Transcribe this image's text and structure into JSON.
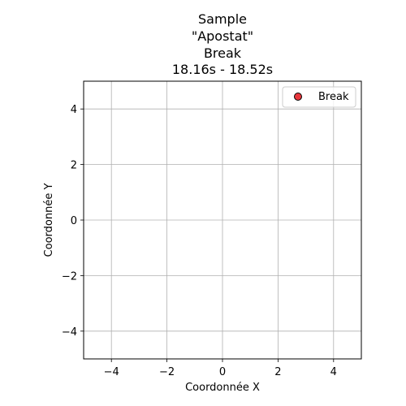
{
  "chart_data": {
    "type": "scatter",
    "title_lines": [
      "Sample",
      "\"Apostat\"",
      "Break",
      "18.16s - 18.52s"
    ],
    "xlabel": "Coordonnée X",
    "ylabel": "Coordonnée Y",
    "xlim": [
      -5,
      5
    ],
    "ylim": [
      -5,
      5
    ],
    "xticks": [
      -4,
      -2,
      0,
      2,
      4
    ],
    "yticks": [
      -4,
      -2,
      0,
      2,
      4
    ],
    "xtick_labels": [
      "−4",
      "−2",
      "0",
      "2",
      "4"
    ],
    "ytick_labels": [
      "−4",
      "−2",
      "0",
      "2",
      "4"
    ],
    "grid": true,
    "legend_position": "top-right",
    "series": [
      {
        "name": "Break",
        "color": "#e8373c",
        "edge_color": "#000000",
        "points": []
      }
    ]
  }
}
